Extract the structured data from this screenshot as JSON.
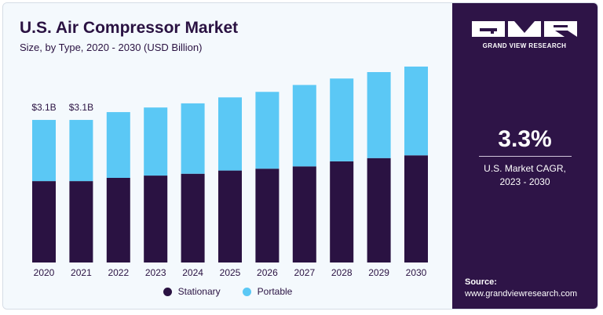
{
  "header": {
    "title": "U.S. Air Compressor Market",
    "subtitle": "Size, by Type, 2020 - 2030 (USD Billion)"
  },
  "chart_data": {
    "type": "bar",
    "stacked": true,
    "categories": [
      "2020",
      "2021",
      "2022",
      "2023",
      "2024",
      "2025",
      "2026",
      "2027",
      "2028",
      "2029",
      "2030"
    ],
    "series": [
      {
        "name": "Stationary",
        "color": "#2a1242",
        "values": [
          1.77,
          1.77,
          1.84,
          1.89,
          1.93,
          2.0,
          2.04,
          2.09,
          2.2,
          2.27,
          2.33
        ]
      },
      {
        "name": "Portable",
        "color": "#5bc8f5",
        "values": [
          1.33,
          1.33,
          1.43,
          1.48,
          1.53,
          1.59,
          1.67,
          1.77,
          1.8,
          1.87,
          1.93
        ]
      }
    ],
    "data_labels": [
      {
        "category": "2020",
        "text": "$3.1B"
      },
      {
        "category": "2021",
        "text": "$3.1B"
      }
    ],
    "ylim": [
      0,
      4.6
    ],
    "grid": false,
    "legend_position": "bottom"
  },
  "legend": {
    "stationary_label": "Stationary",
    "portable_label": "Portable"
  },
  "brand": {
    "logo_icon": "gvr-logo-icon",
    "name": "GRAND VIEW RESEARCH"
  },
  "stats": {
    "cagr_value": "3.3%",
    "cagr_label": "U.S. Market CAGR,\n2023 - 2030"
  },
  "source": {
    "label": "Source:",
    "url": "www.grandviewresearch.com"
  },
  "colors": {
    "stationary": "#2a1242",
    "portable": "#5bc8f5",
    "panel": "#2e1447",
    "background": "#f4f9fd"
  }
}
